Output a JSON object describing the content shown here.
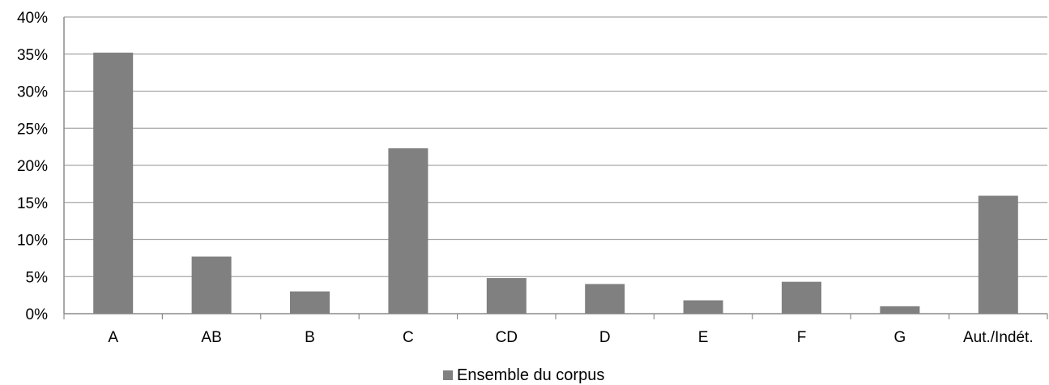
{
  "chart_data": {
    "type": "bar",
    "categories": [
      "A",
      "AB",
      "B",
      "C",
      "CD",
      "D",
      "E",
      "F",
      "G",
      "Aut./Indét."
    ],
    "series": [
      {
        "name": "Ensemble du corpus",
        "values": [
          35.2,
          7.7,
          3.0,
          22.3,
          4.8,
          4.0,
          1.8,
          4.3,
          1.0,
          15.9
        ],
        "color": "#808080"
      }
    ],
    "ylim": [
      0,
      40
    ],
    "yticks": [
      "0%",
      "5%",
      "10%",
      "15%",
      "20%",
      "25%",
      "30%",
      "35%",
      "40%"
    ],
    "ytick_values": [
      0,
      5,
      10,
      15,
      20,
      25,
      30,
      35,
      40
    ],
    "grid": true,
    "legend_position": "bottom"
  }
}
